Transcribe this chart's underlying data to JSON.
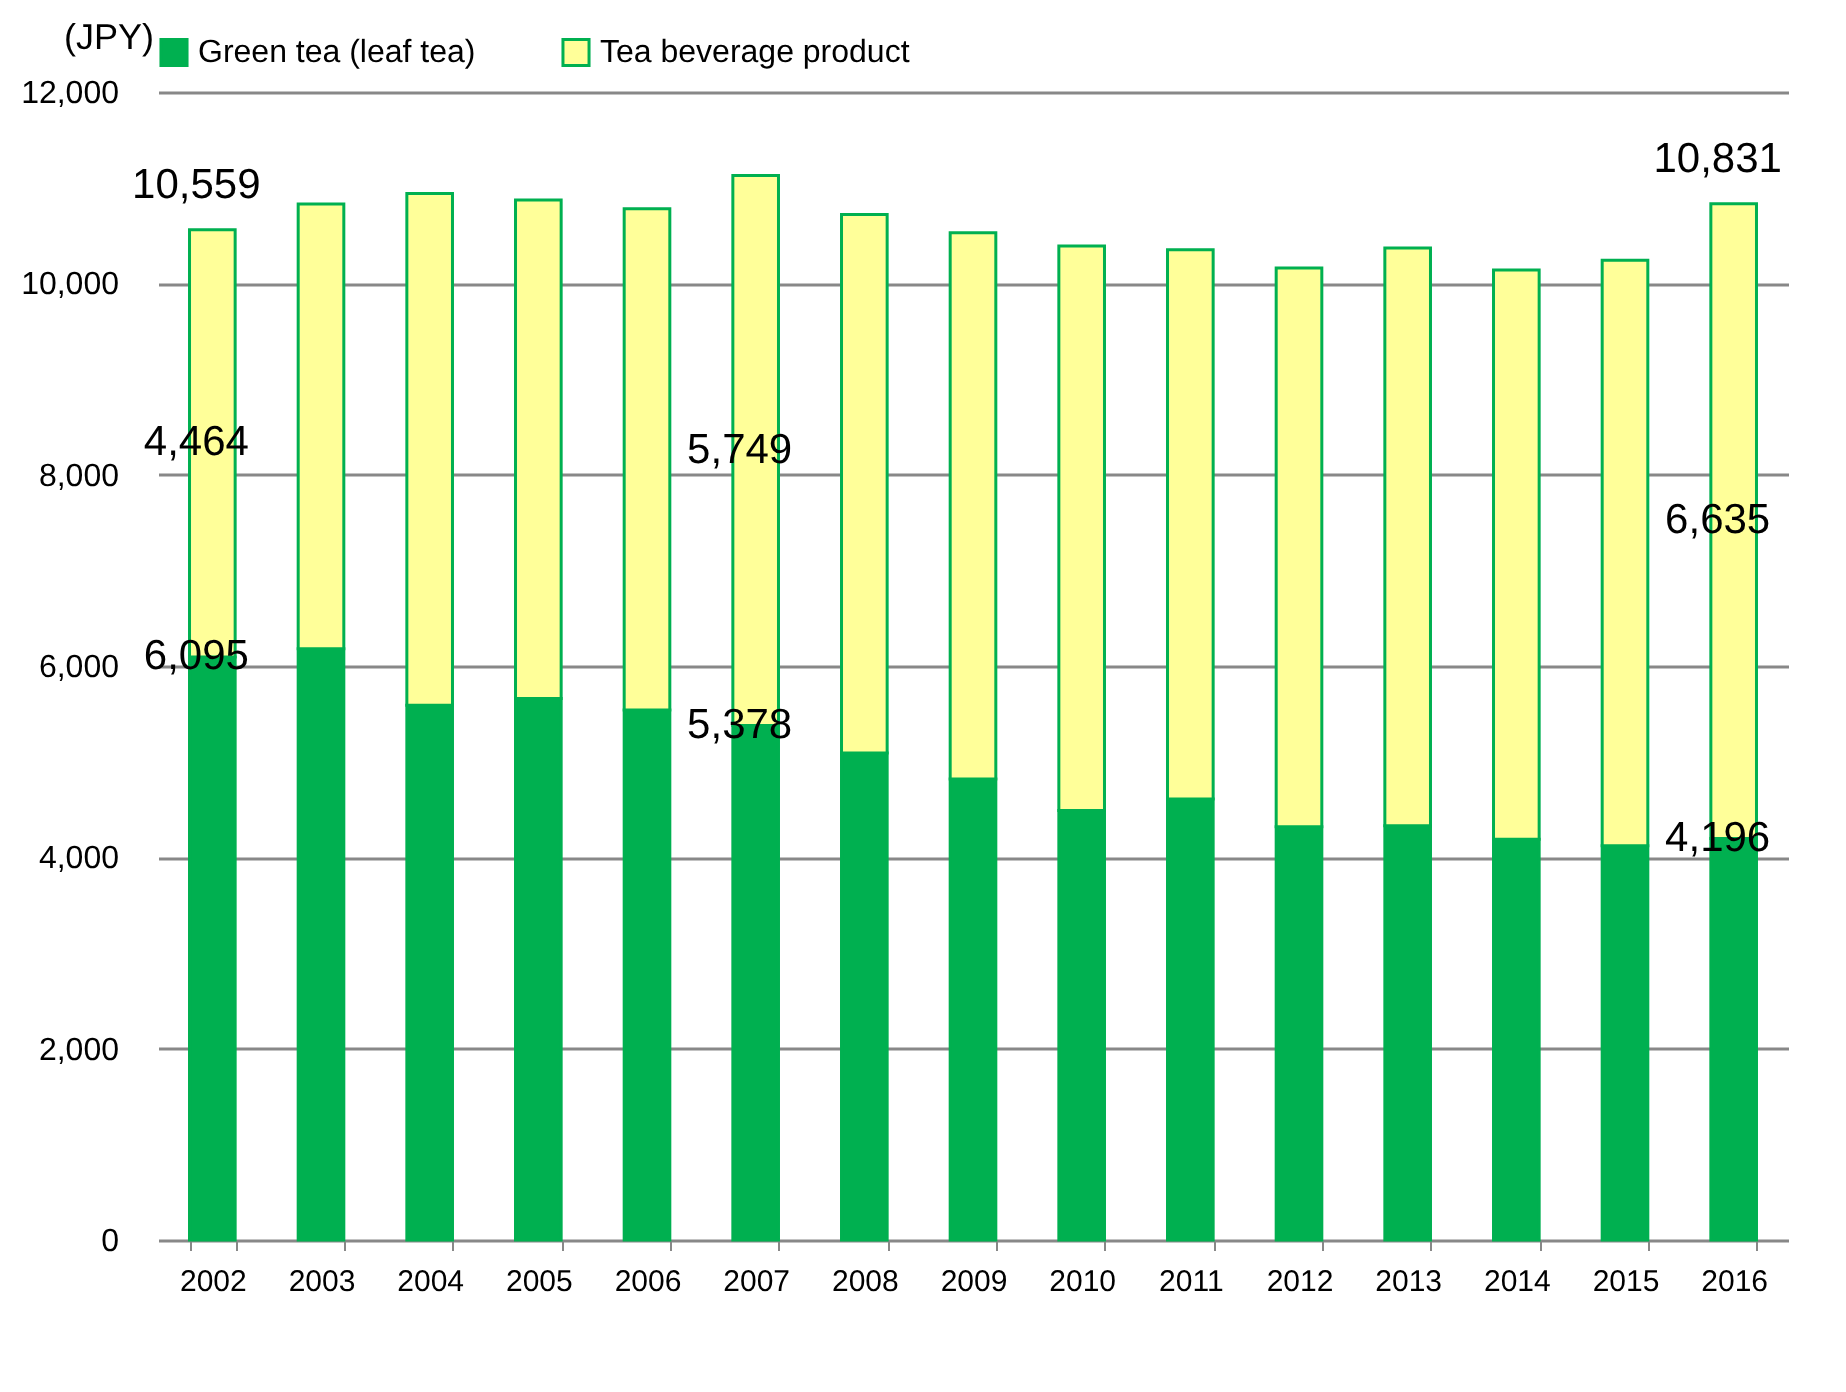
{
  "chart_data": {
    "type": "bar",
    "stacked": true,
    "ylabel": "(JPY)",
    "categories": [
      "2002",
      "2003",
      "2004",
      "2005",
      "2006",
      "2007",
      "2008",
      "2009",
      "2010",
      "2011",
      "2012",
      "2013",
      "2014",
      "2015",
      "2016"
    ],
    "series": [
      {
        "name": "Green tea (leaf tea)",
        "color": "#00b050",
        "values": [
          6095,
          6180,
          5590,
          5660,
          5540,
          5378,
          5090,
          4820,
          4490,
          4610,
          4320,
          4330,
          4190,
          4120,
          4196
        ],
        "value_labels": [
          "6,095",
          null,
          null,
          null,
          null,
          "5,378",
          null,
          null,
          null,
          null,
          null,
          null,
          null,
          null,
          "4,196"
        ]
      },
      {
        "name": "Tea beverage product",
        "color": "#ffff99",
        "values": [
          4464,
          4650,
          5350,
          5210,
          5240,
          5749,
          5630,
          5710,
          5900,
          5740,
          5840,
          6040,
          5950,
          6120,
          6635
        ],
        "value_labels": [
          "4,464",
          null,
          null,
          null,
          null,
          "5,749",
          null,
          null,
          null,
          null,
          null,
          null,
          null,
          null,
          "6,635"
        ]
      }
    ],
    "totals": [
      "10,559",
      null,
      null,
      null,
      null,
      null,
      null,
      null,
      null,
      null,
      null,
      null,
      null,
      null,
      "10,831"
    ],
    "ylim": [
      0,
      12000
    ],
    "yticks": [
      0,
      {
        "value": 2000,
        "label": "2,000"
      },
      {
        "value": 4000,
        "label": "4,000"
      },
      {
        "value": 6000,
        "label": "6,000"
      },
      {
        "value": 8000,
        "label": "8,000"
      },
      {
        "value": 10000,
        "label": "10,000"
      },
      {
        "value": 12000,
        "label": "12,000"
      }
    ],
    "grid": "y",
    "legend": "top"
  }
}
